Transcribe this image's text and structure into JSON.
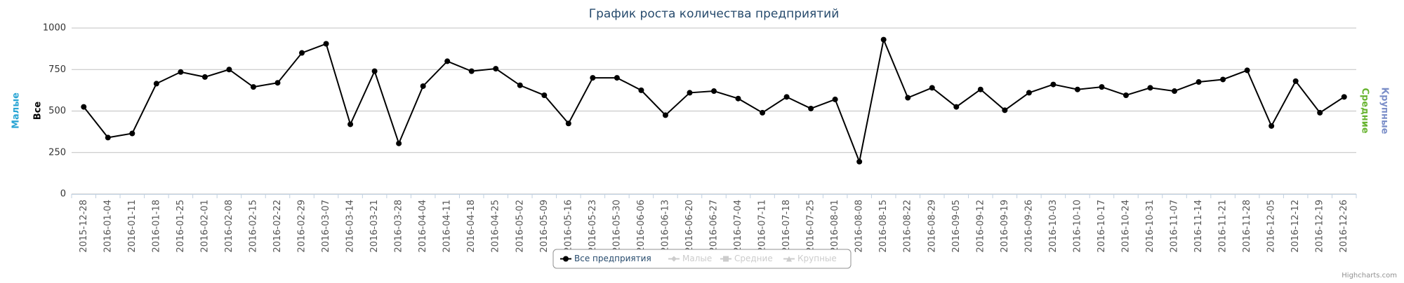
{
  "chart_data": {
    "type": "line",
    "title": "График роста количества предприятий",
    "x": [
      "2015-12-28",
      "2016-01-04",
      "2016-01-11",
      "2016-01-18",
      "2016-01-25",
      "2016-02-01",
      "2016-02-08",
      "2016-02-15",
      "2016-02-22",
      "2016-02-29",
      "2016-03-07",
      "2016-03-14",
      "2016-03-21",
      "2016-03-28",
      "2016-04-04",
      "2016-04-11",
      "2016-04-18",
      "2016-04-25",
      "2016-05-02",
      "2016-05-09",
      "2016-05-16",
      "2016-05-23",
      "2016-05-30",
      "2016-06-06",
      "2016-06-13",
      "2016-06-20",
      "2016-06-27",
      "2016-07-04",
      "2016-07-11",
      "2016-07-18",
      "2016-07-25",
      "2016-08-01",
      "2016-08-08",
      "2016-08-15",
      "2016-08-22",
      "2016-08-29",
      "2016-09-05",
      "2016-09-12",
      "2016-09-19",
      "2016-09-26",
      "2016-10-03",
      "2016-10-10",
      "2016-10-17",
      "2016-10-24",
      "2016-10-31",
      "2016-11-07",
      "2016-11-14",
      "2016-11-21",
      "2016-11-28",
      "2016-12-05",
      "2016-12-12",
      "2016-12-19",
      "2016-12-26"
    ],
    "series": [
      {
        "name": "Все предприятия",
        "color": "#000000",
        "visible": true,
        "values": [
          525,
          340,
          365,
          665,
          735,
          705,
          750,
          645,
          670,
          850,
          905,
          420,
          740,
          305,
          650,
          800,
          740,
          755,
          655,
          595,
          425,
          700,
          700,
          625,
          475,
          610,
          620,
          575,
          490,
          585,
          515,
          570,
          195,
          930,
          580,
          640,
          525,
          630,
          505,
          610,
          660,
          630,
          645,
          595,
          640,
          620,
          675,
          690,
          745,
          410,
          680,
          490,
          585
        ]
      },
      {
        "name": "Малые",
        "color": "#2aa5d4",
        "visible": false
      },
      {
        "name": "Средние",
        "color": "#66b32e",
        "visible": false
      },
      {
        "name": "Крупные",
        "color": "#7b8ec8",
        "visible": false
      }
    ],
    "yaxes": [
      {
        "title": "Малые",
        "color": "#2aa5d4",
        "side": "left"
      },
      {
        "title": "Все",
        "color": "#000000",
        "side": "left"
      },
      {
        "title": "Средние",
        "color": "#66b32e",
        "side": "right"
      },
      {
        "title": "Крупные",
        "color": "#7b8ec8",
        "side": "right"
      }
    ],
    "ylim": [
      0,
      1000
    ],
    "yticks": [
      0,
      250,
      500,
      750,
      1000
    ],
    "grid": true,
    "legend": "bottom",
    "credits": "Highcharts.com"
  }
}
